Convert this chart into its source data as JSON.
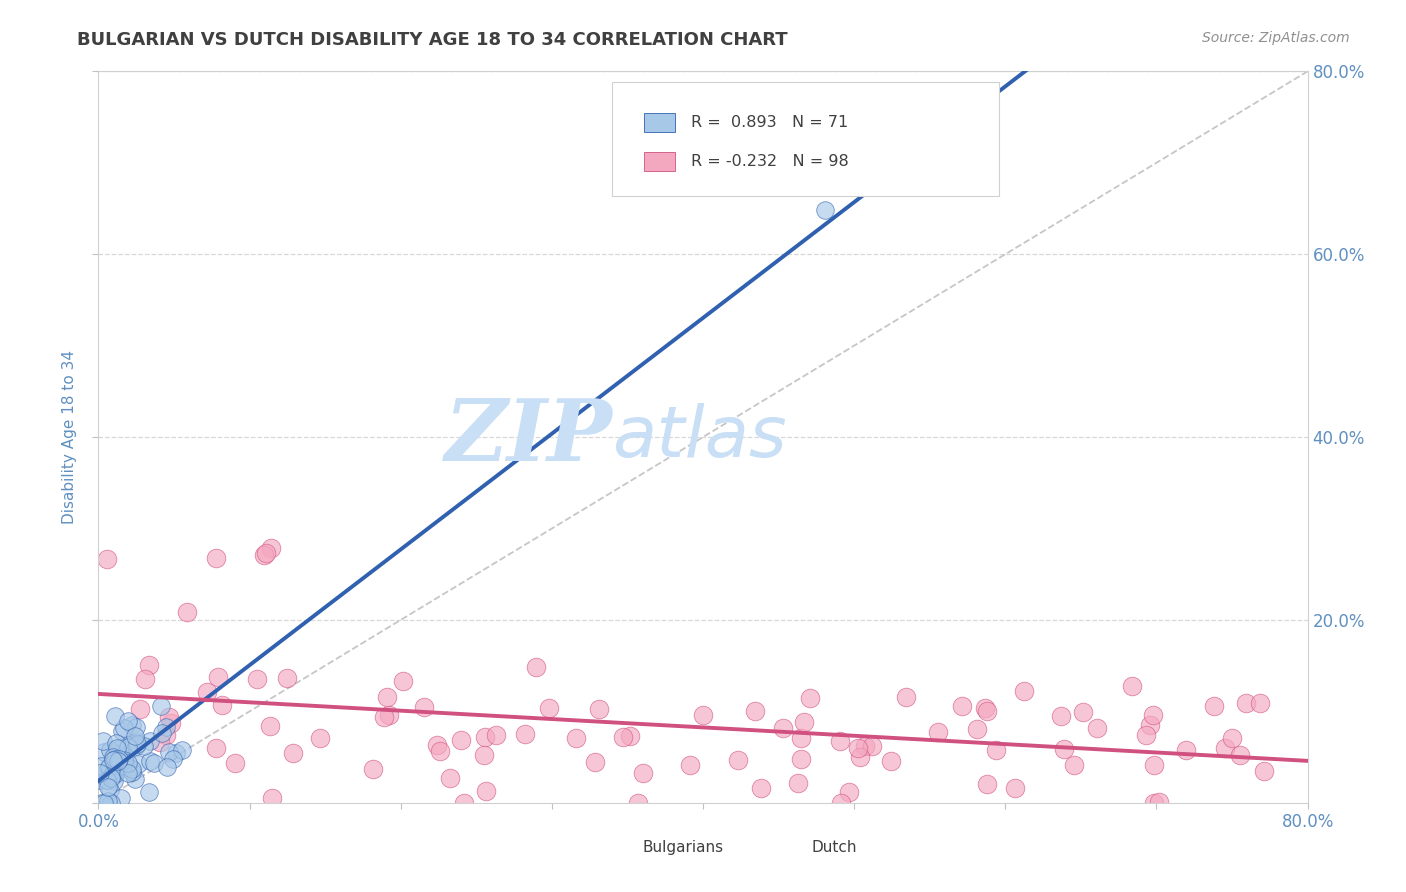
{
  "title": "BULGARIAN VS DUTCH DISABILITY AGE 18 TO 34 CORRELATION CHART",
  "source": "Source: ZipAtlas.com",
  "ylabel": "Disability Age 18 to 34",
  "xlim": [
    0.0,
    0.8
  ],
  "ylim": [
    0.0,
    0.8
  ],
  "xticks": [
    0.0,
    0.1,
    0.2,
    0.3,
    0.4,
    0.5,
    0.6,
    0.7,
    0.8
  ],
  "yticks": [
    0.0,
    0.2,
    0.4,
    0.6,
    0.8
  ],
  "xticklabels": [
    "0.0%",
    "",
    "",
    "",
    "",
    "",
    "",
    "",
    "80.0%"
  ],
  "right_yticklabels": [
    "",
    "20.0%",
    "40.0%",
    "60.0%",
    "80.0%"
  ],
  "bulgarian_R": 0.893,
  "bulgarian_N": 71,
  "dutch_R": -0.232,
  "dutch_N": 98,
  "bulgarian_color": "#a8c8e8",
  "dutch_color": "#f4a8c0",
  "bulgarian_line_color": "#3060b0",
  "dutch_line_color": "#d05080",
  "ref_line_color": "#c0c0c0",
  "watermark_zip": "ZIP",
  "watermark_atlas": "atlas",
  "watermark_color": "#c8dff5",
  "background_color": "#ffffff",
  "grid_color": "#d8d8d8",
  "title_color": "#404040",
  "tick_label_color": "#6090c0",
  "legend_border_color": "#d0d0d0",
  "source_color": "#909090"
}
